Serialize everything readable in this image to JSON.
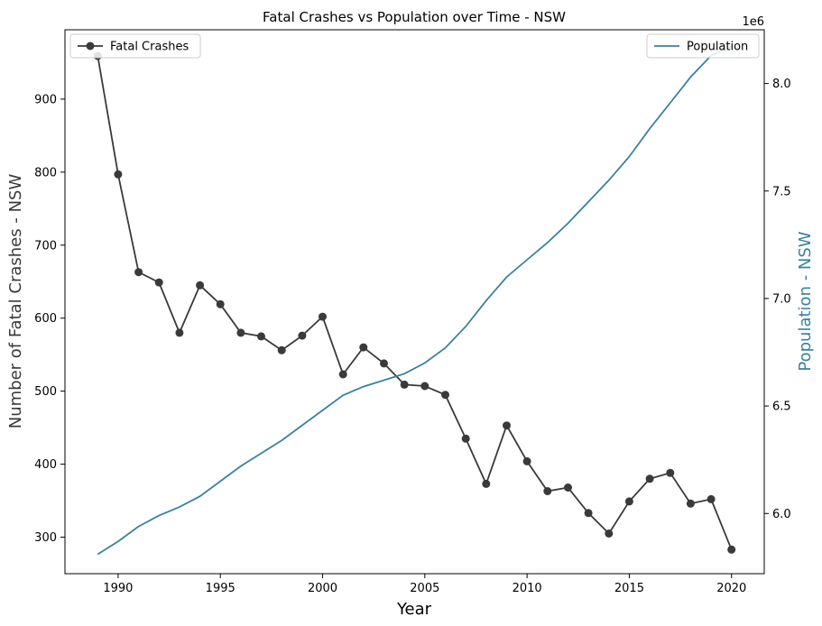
{
  "chart_data": {
    "type": "line",
    "title": "Fatal Crashes vs Population over Time - NSW",
    "xlabel": "Year",
    "ylabel_left": "Number of Fatal Crashes - NSW",
    "ylabel_right": "Population - NSW",
    "right_axis_offset_label": "1e6",
    "xlim": [
      1987.4,
      2021.6
    ],
    "ylim_left": [
      250,
      995
    ],
    "ylim_right": [
      5.72,
      8.25
    ],
    "x_ticks": [
      1990,
      1995,
      2000,
      2005,
      2010,
      2015,
      2020
    ],
    "y_ticks_left": [
      300,
      400,
      500,
      600,
      700,
      800,
      900
    ],
    "y_ticks_right": [
      "6.0",
      "6.5",
      "7.0",
      "7.5",
      "8.0"
    ],
    "x": [
      1989,
      1990,
      1991,
      1992,
      1993,
      1994,
      1995,
      1996,
      1997,
      1998,
      1999,
      2000,
      2001,
      2002,
      2003,
      2004,
      2005,
      2006,
      2007,
      2008,
      2009,
      2010,
      2011,
      2012,
      2013,
      2014,
      2015,
      2016,
      2017,
      2018,
      2019,
      2020
    ],
    "series": [
      {
        "name": "Fatal Crashes",
        "axis": "left",
        "color": "#3a3a3a",
        "marker": "circle",
        "values": [
          959,
          797,
          663,
          649,
          580,
          645,
          619,
          580,
          575,
          556,
          576,
          602,
          523,
          560,
          538,
          509,
          507,
          495,
          435,
          373,
          453,
          404,
          363,
          368,
          333,
          305,
          349,
          380,
          388,
          346,
          352,
          283
        ]
      },
      {
        "name": "Population",
        "axis": "right",
        "color": "#3a81a0",
        "marker": "none",
        "values": [
          5.81,
          5.87,
          5.94,
          5.99,
          6.03,
          6.08,
          6.15,
          6.22,
          6.28,
          6.34,
          6.41,
          6.48,
          6.55,
          6.59,
          6.62,
          6.65,
          6.7,
          6.77,
          6.87,
          6.99,
          7.1,
          7.18,
          7.26,
          7.35,
          7.45,
          7.55,
          7.66,
          7.79,
          7.91,
          8.03,
          8.13,
          8.17
        ]
      }
    ],
    "legends": [
      {
        "series": "Fatal Crashes",
        "placement": "top-left"
      },
      {
        "series": "Population",
        "placement": "top-right"
      }
    ],
    "grid": false
  }
}
